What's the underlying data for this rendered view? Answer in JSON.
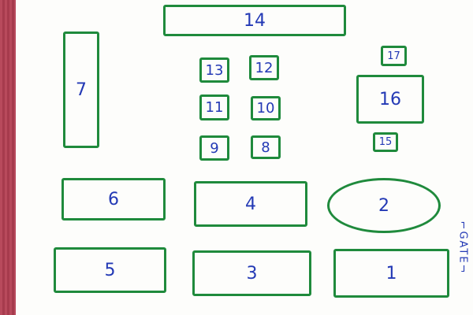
{
  "stalls": [
    {
      "id": "stall-14",
      "label": "14"
    },
    {
      "id": "stall-7",
      "label": "7"
    },
    {
      "id": "stall-13",
      "label": "13"
    },
    {
      "id": "stall-12",
      "label": "12"
    },
    {
      "id": "stall-11",
      "label": "11"
    },
    {
      "id": "stall-10",
      "label": "10"
    },
    {
      "id": "stall-9",
      "label": "9"
    },
    {
      "id": "stall-8",
      "label": "8"
    },
    {
      "id": "stall-17",
      "label": "17"
    },
    {
      "id": "stall-16",
      "label": "16"
    },
    {
      "id": "stall-15",
      "label": "15"
    },
    {
      "id": "stall-6",
      "label": "6"
    },
    {
      "id": "stall-4",
      "label": "4"
    },
    {
      "id": "stall-2",
      "label": "2"
    },
    {
      "id": "stall-5",
      "label": "5"
    },
    {
      "id": "stall-3",
      "label": "3"
    },
    {
      "id": "stall-1",
      "label": "1"
    }
  ],
  "gate": {
    "label": "⌐GATE¬"
  },
  "colors": {
    "outline": "#1f8a3c",
    "number": "#2339b5",
    "edge": "#b84a5c"
  }
}
